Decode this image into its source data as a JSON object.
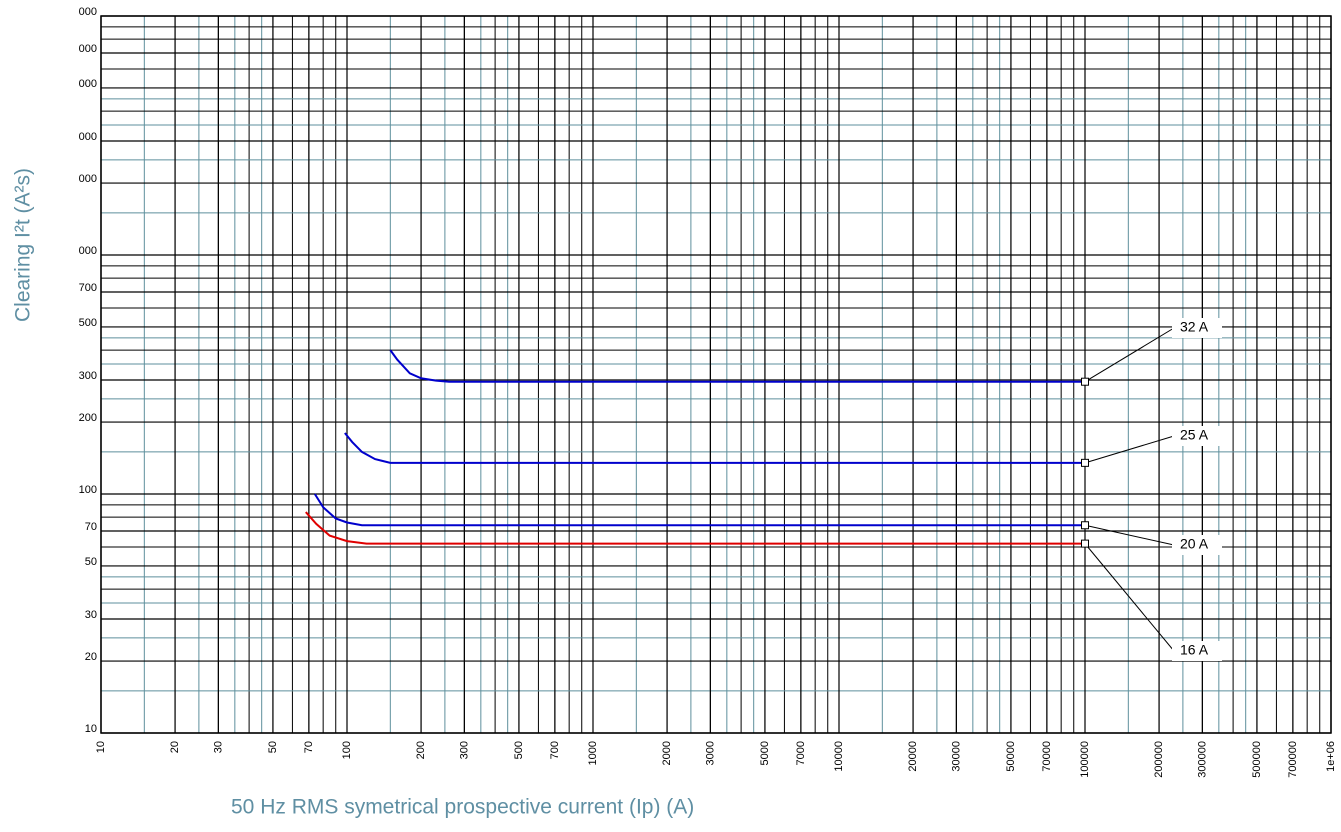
{
  "chart_data": {
    "type": "line",
    "xlabel": "50 Hz RMS symetrical prospective current (Ip) (A)",
    "ylabel": "Clearing I²t (A²s)",
    "log_x": true,
    "log_y": true,
    "grid": true,
    "xlim": [
      10,
      1000000
    ],
    "ylim": [
      10,
      10000
    ],
    "xticks": [
      10,
      20,
      30,
      50,
      70,
      100,
      200,
      300,
      500,
      700,
      1000,
      2000,
      3000,
      5000,
      7000,
      10000,
      20000,
      30000,
      50000,
      70000,
      100000,
      200000,
      300000,
      500000,
      700000,
      {
        "value": 1000000,
        "label": "1e+06"
      }
    ],
    "yticks": [
      10,
      20,
      30,
      50,
      70,
      100,
      200,
      300,
      500,
      700,
      {
        "value": 1000,
        "label": "000"
      },
      {
        "value": 2000,
        "label": "000"
      },
      {
        "value": 3000,
        "label": "000"
      },
      {
        "value": 5000,
        "label": "000"
      },
      {
        "value": 7000,
        "label": "000"
      },
      {
        "value": 10000,
        "label": "000"
      }
    ],
    "series": [
      {
        "name": "32 A",
        "color": "#0000cc",
        "x": [
          150,
          160,
          180,
          200,
          230,
          260,
          100000
        ],
        "values": [
          400,
          365,
          320,
          305,
          298,
          295,
          295
        ]
      },
      {
        "name": "25 A",
        "color": "#0000cc",
        "x": [
          98,
          105,
          115,
          130,
          150,
          100000
        ],
        "values": [
          180,
          165,
          150,
          140,
          135,
          135
        ]
      },
      {
        "name": "20 A",
        "color": "#0000cc",
        "x": [
          74,
          80,
          90,
          100,
          115,
          100000
        ],
        "values": [
          100,
          88,
          79,
          76,
          74,
          74
        ]
      },
      {
        "name": "16 A",
        "color": "#e00000",
        "x": [
          68,
          75,
          85,
          100,
          120,
          100000
        ],
        "values": [
          84,
          75,
          67,
          63.5,
          62,
          62
        ]
      }
    ]
  }
}
